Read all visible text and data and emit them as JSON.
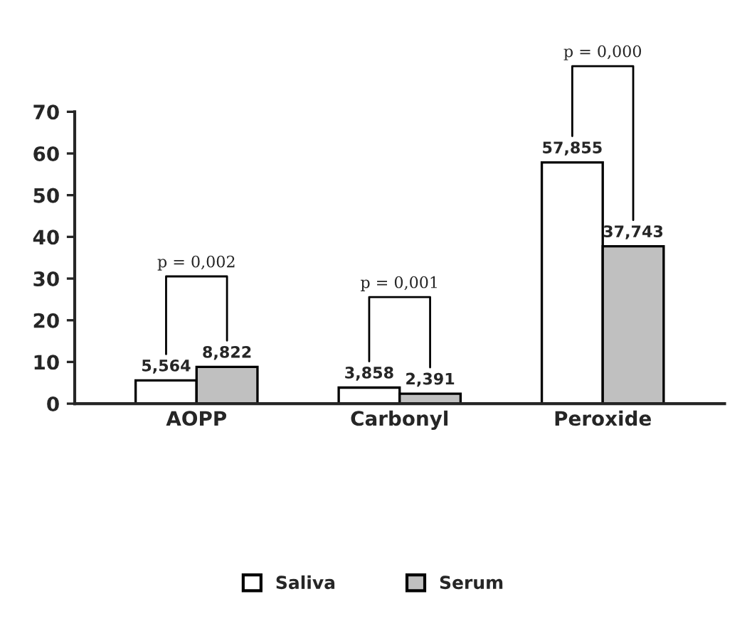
{
  "chart_data": {
    "type": "bar",
    "categories": [
      "AOPP",
      "Carbonyl",
      "Peroxide"
    ],
    "series": [
      {
        "name": "Saliva",
        "color": "#ffffff",
        "values": [
          5.564,
          3.858,
          57.855
        ],
        "value_labels": [
          "5,564",
          "3,858",
          "57,855"
        ]
      },
      {
        "name": "Serum",
        "color": "#c0c0c0",
        "values": [
          8.822,
          2.391,
          37.743
        ],
        "value_labels": [
          "8,822",
          "2,391",
          "37,743"
        ]
      }
    ],
    "ylim": [
      0,
      70
    ],
    "yticks": [
      0,
      10,
      20,
      30,
      40,
      50,
      60,
      70
    ],
    "annotations": [
      "p = 0,002",
      "p = 0,001",
      "p = 0,000"
    ],
    "grid": false,
    "legend": "bottom"
  }
}
